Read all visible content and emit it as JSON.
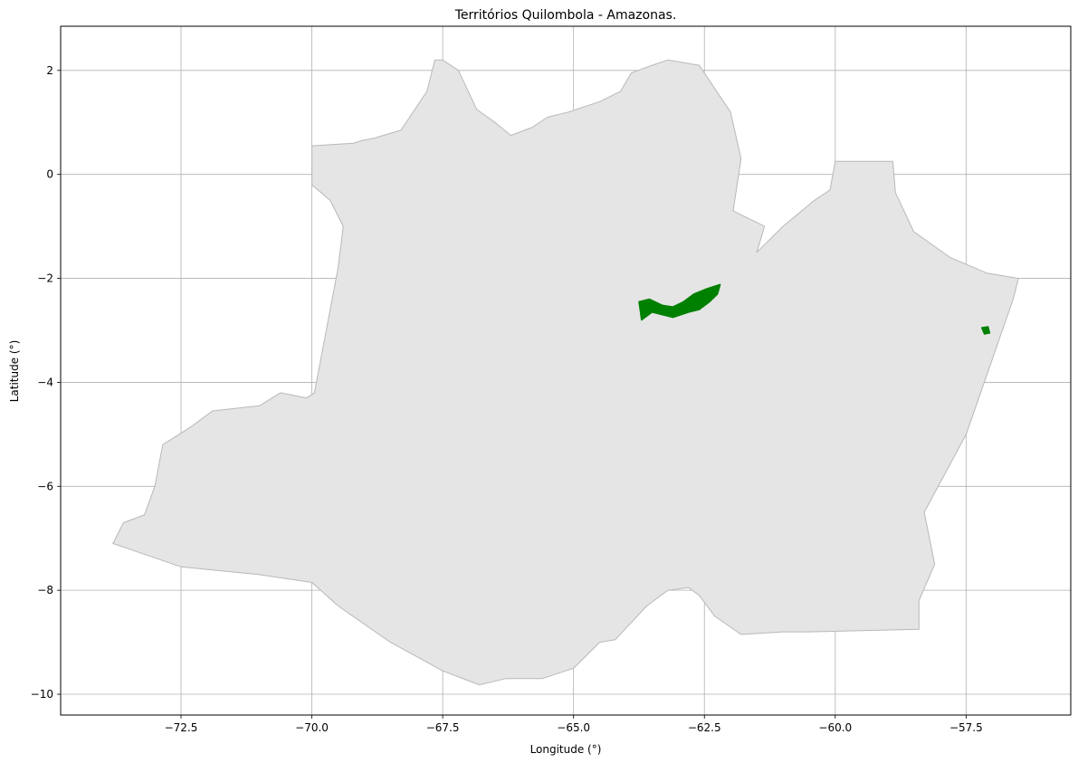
{
  "chart_data": {
    "type": "map",
    "title": "Territórios Quilombola - Amazonas.",
    "xlabel": "Longitude (°)",
    "ylabel": "Latitude (°)",
    "xlim": [
      -74.8,
      -55.5
    ],
    "ylim": [
      -10.4,
      2.85
    ],
    "x_ticks": [
      {
        "value": -72.5,
        "label": "−72.5"
      },
      {
        "value": -70.0,
        "label": "−70.0"
      },
      {
        "value": -67.5,
        "label": "−67.5"
      },
      {
        "value": -65.0,
        "label": "−65.0"
      },
      {
        "value": -62.5,
        "label": "−62.5"
      },
      {
        "value": -60.0,
        "label": "−60.0"
      },
      {
        "value": -57.5,
        "label": "−57.5"
      }
    ],
    "y_ticks": [
      {
        "value": 2,
        "label": "2"
      },
      {
        "value": 0,
        "label": "0"
      },
      {
        "value": -2,
        "label": "−2"
      },
      {
        "value": -4,
        "label": "−4"
      },
      {
        "value": -6,
        "label": "−6"
      },
      {
        "value": -8,
        "label": "−8"
      },
      {
        "value": -10,
        "label": "−10"
      }
    ],
    "grid": true,
    "state_fill": "#e5e5e5",
    "state_edge": "#b8b8b8",
    "territory_fill": "#008000",
    "state_outline": [
      [
        -70.0,
        0.55
      ],
      [
        -69.2,
        0.6
      ],
      [
        -69.05,
        0.65
      ],
      [
        -68.8,
        0.7
      ],
      [
        -68.3,
        0.85
      ],
      [
        -67.8,
        1.6
      ],
      [
        -67.65,
        2.2
      ],
      [
        -67.5,
        2.2
      ],
      [
        -67.2,
        2.0
      ],
      [
        -66.85,
        1.25
      ],
      [
        -66.5,
        1.0
      ],
      [
        -66.2,
        0.75
      ],
      [
        -65.8,
        0.9
      ],
      [
        -65.5,
        1.1
      ],
      [
        -65.1,
        1.2
      ],
      [
        -64.5,
        1.4
      ],
      [
        -64.1,
        1.6
      ],
      [
        -63.9,
        1.95
      ],
      [
        -63.5,
        2.1
      ],
      [
        -63.2,
        2.2
      ],
      [
        -62.6,
        2.1
      ],
      [
        -62.4,
        1.8
      ],
      [
        -62.0,
        1.2
      ],
      [
        -61.8,
        0.3
      ],
      [
        -61.95,
        -0.7
      ],
      [
        -61.35,
        -1.0
      ],
      [
        -61.5,
        -1.5
      ],
      [
        -61.0,
        -1.0
      ],
      [
        -60.4,
        -0.5
      ],
      [
        -60.1,
        -0.3
      ],
      [
        -60.0,
        0.25
      ],
      [
        -58.9,
        0.25
      ],
      [
        -58.85,
        -0.35
      ],
      [
        -58.5,
        -1.1
      ],
      [
        -57.8,
        -1.6
      ],
      [
        -57.1,
        -1.9
      ],
      [
        -56.5,
        -2.0
      ],
      [
        -56.6,
        -2.4
      ],
      [
        -57.5,
        -5.0
      ],
      [
        -58.3,
        -6.5
      ],
      [
        -58.1,
        -7.5
      ],
      [
        -58.4,
        -8.2
      ],
      [
        -58.4,
        -8.75
      ],
      [
        -60.5,
        -8.8
      ],
      [
        -61.0,
        -8.8
      ],
      [
        -61.8,
        -8.85
      ],
      [
        -62.3,
        -8.5
      ],
      [
        -62.6,
        -8.1
      ],
      [
        -62.8,
        -7.95
      ],
      [
        -63.2,
        -8.0
      ],
      [
        -63.6,
        -8.3
      ],
      [
        -64.2,
        -8.95
      ],
      [
        -64.5,
        -9.0
      ],
      [
        -65.0,
        -9.5
      ],
      [
        -65.6,
        -9.7
      ],
      [
        -66.3,
        -9.7
      ],
      [
        -66.8,
        -9.82
      ],
      [
        -67.5,
        -9.55
      ],
      [
        -68.5,
        -9.0
      ],
      [
        -69.5,
        -8.3
      ],
      [
        -70.0,
        -7.85
      ],
      [
        -71.0,
        -7.7
      ],
      [
        -72.5,
        -7.55
      ],
      [
        -73.8,
        -7.1
      ],
      [
        -73.6,
        -6.7
      ],
      [
        -73.2,
        -6.55
      ],
      [
        -73.0,
        -6.0
      ],
      [
        -72.85,
        -5.2
      ],
      [
        -72.3,
        -4.85
      ],
      [
        -71.9,
        -4.55
      ],
      [
        -71.0,
        -4.45
      ],
      [
        -70.6,
        -4.2
      ],
      [
        -70.1,
        -4.3
      ],
      [
        -69.95,
        -4.2
      ],
      [
        -69.5,
        -1.8
      ],
      [
        -69.4,
        -1.0
      ],
      [
        -69.65,
        -0.5
      ],
      [
        -70.0,
        -0.2
      ],
      [
        -70.0,
        0.55
      ]
    ],
    "territories": [
      {
        "outline": [
          [
            -63.75,
            -2.45
          ],
          [
            -63.55,
            -2.4
          ],
          [
            -63.3,
            -2.52
          ],
          [
            -63.1,
            -2.55
          ],
          [
            -62.9,
            -2.45
          ],
          [
            -62.7,
            -2.3
          ],
          [
            -62.45,
            -2.2
          ],
          [
            -62.2,
            -2.12
          ],
          [
            -62.25,
            -2.3
          ],
          [
            -62.4,
            -2.45
          ],
          [
            -62.6,
            -2.6
          ],
          [
            -62.8,
            -2.65
          ],
          [
            -63.1,
            -2.75
          ],
          [
            -63.3,
            -2.7
          ],
          [
            -63.5,
            -2.65
          ],
          [
            -63.7,
            -2.8
          ],
          [
            -63.75,
            -2.45
          ]
        ]
      },
      {
        "outline": [
          [
            -57.2,
            -2.95
          ],
          [
            -57.08,
            -2.93
          ],
          [
            -57.05,
            -3.05
          ],
          [
            -57.15,
            -3.07
          ],
          [
            -57.2,
            -2.95
          ]
        ]
      }
    ]
  }
}
